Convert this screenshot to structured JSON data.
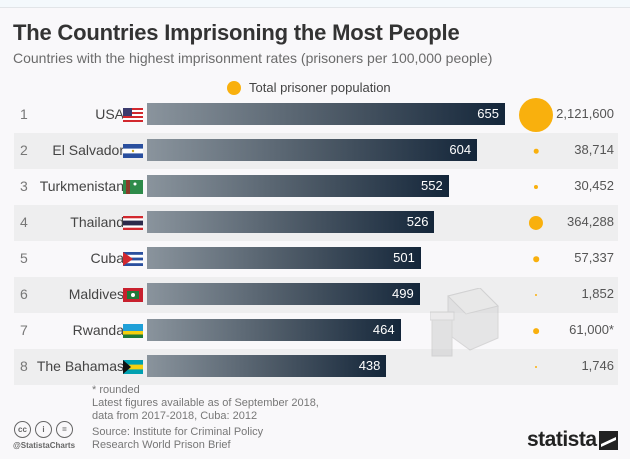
{
  "title": "The Countries Imprisoning the Most People",
  "subtitle": "Countries with the highest imprisonment rates (prisoners per 100,000 people)",
  "legend": "Total prisoner population",
  "colors": {
    "bubble": "#f9b00d",
    "bar_dark": "#14263a",
    "bar_light": "#8a949d"
  },
  "chart_data": {
    "type": "bar",
    "orientation": "horizontal",
    "title": "The Countries Imprisoning the Most People",
    "subtitle": "Countries with the highest imprisonment rates (prisoners per 100,000 people)",
    "categories": [
      "USA",
      "El Salvador",
      "Turkmenistan",
      "Thailand",
      "Cuba",
      "Maldives",
      "Rwanda",
      "The Bahamas"
    ],
    "ranks": [
      "1",
      "2",
      "3",
      "4",
      "5",
      "6",
      "7",
      "8"
    ],
    "series": [
      {
        "name": "Imprisonment rate (per 100,000 people)",
        "values": [
          655,
          604,
          552,
          526,
          501,
          499,
          464,
          438
        ]
      },
      {
        "name": "Total prisoner population",
        "values": [
          2121600,
          38714,
          30452,
          364288,
          57337,
          1852,
          61000,
          1746
        ]
      }
    ],
    "population_labels": [
      "2,121,600",
      "38,714",
      "30,452",
      "364,288",
      "57,337",
      "1,852",
      "61,000*",
      "1,746"
    ],
    "legend": [
      "Total prisoner population"
    ]
  },
  "flags": [
    "usa-flag",
    "el-salvador-flag",
    "turkmenistan-flag",
    "thailand-flag",
    "cuba-flag",
    "maldives-flag",
    "rwanda-flag",
    "bahamas-flag"
  ],
  "footer": {
    "note1": "* rounded",
    "note2": "Latest figures available as of September 2018,",
    "note3": "data from 2017-2018, Cuba: 2012",
    "source1": "Source: Institute for Criminal Policy",
    "source2": "Research World Prison Brief",
    "handle": "@StatistaCharts",
    "brand": "statista",
    "cc_icons": [
      "cc",
      "i",
      "="
    ]
  }
}
